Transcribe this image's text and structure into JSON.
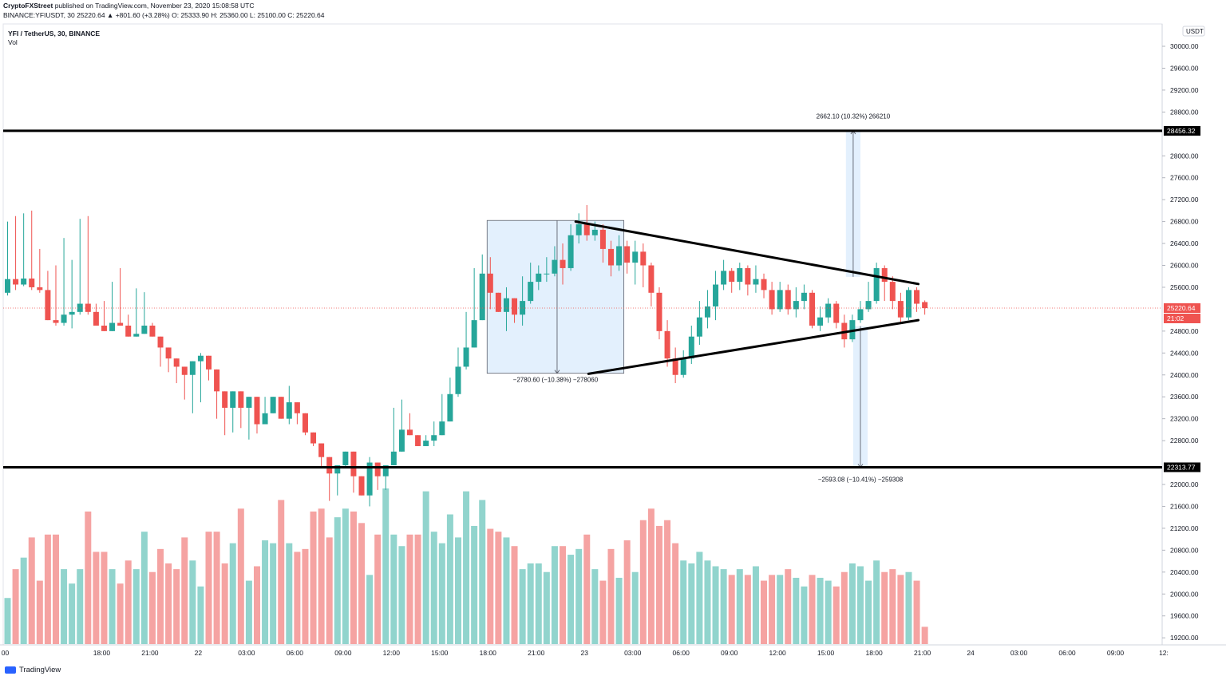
{
  "header": {
    "publish_line_author": "CryptoFXStreet",
    "publish_line_rest": " published on TradingView.com, November 23, 2020 15:08:58 UTC",
    "ohlc_line": "BINANCE:YFIUSDT, 30  25220.64  ▲ +801.60 (+3.28%)  O: 25333.90  H: 25360.00  L: 25100.00  C: 25220.64"
  },
  "symbol_title": "YFI / TetherUS, 30, BINANCE",
  "vol_label": "Vol",
  "footer": {
    "brand": "TradingView"
  },
  "colors": {
    "up": "#26a69a",
    "down": "#ef5350",
    "up_vol": "#91d4cd",
    "down_vol": "#f5a3a2",
    "zone": "#e3f0fd"
  },
  "chart_data": {
    "type": "candlestick",
    "ylim": [
      19000,
      30300
    ],
    "currency_label": "USDT",
    "y_ticks": [
      "30000.00",
      "29600.00",
      "29200.00",
      "28800.00",
      "28000.00",
      "27600.00",
      "27200.00",
      "26800.00",
      "26400.00",
      "26000.00",
      "25600.00",
      "24800.00",
      "24400.00",
      "24000.00",
      "23600.00",
      "23200.00",
      "22800.00",
      "22000.00",
      "21600.00",
      "21200.00",
      "20800.00",
      "20400.00",
      "20000.00",
      "19600.00",
      "19200.00"
    ],
    "x_ticks": [
      {
        "bar": -0.3,
        "label": "00"
      },
      {
        "bar": 11.7,
        "label": "18:00"
      },
      {
        "bar": 17.7,
        "label": "21:00"
      },
      {
        "bar": 23.7,
        "label": "22"
      },
      {
        "bar": 29.7,
        "label": "03:00"
      },
      {
        "bar": 35.7,
        "label": "06:00"
      },
      {
        "bar": 41.7,
        "label": "09:00"
      },
      {
        "bar": 47.7,
        "label": "12:00"
      },
      {
        "bar": 53.7,
        "label": "15:00"
      },
      {
        "bar": 59.7,
        "label": "18:00"
      },
      {
        "bar": 65.7,
        "label": "21:00"
      },
      {
        "bar": 71.7,
        "label": "23"
      },
      {
        "bar": 77.7,
        "label": "03:00"
      },
      {
        "bar": 83.7,
        "label": "06:00"
      },
      {
        "bar": 89.7,
        "label": "09:00"
      },
      {
        "bar": 95.7,
        "label": "12:00"
      },
      {
        "bar": 101.7,
        "label": "15:00"
      },
      {
        "bar": 107.7,
        "label": "18:00"
      },
      {
        "bar": 113.7,
        "label": "21:00"
      },
      {
        "bar": 119.7,
        "label": "24"
      },
      {
        "bar": 125.7,
        "label": "03:00"
      },
      {
        "bar": 131.7,
        "label": "06:00"
      },
      {
        "bar": 137.7,
        "label": "09:00"
      },
      {
        "bar": 143.7,
        "label": "12:"
      }
    ],
    "candles": [
      [
        25500,
        25750,
        26800,
        25450,
        800
      ],
      [
        25750,
        25650,
        26900,
        25550,
        1300
      ],
      [
        25650,
        25760,
        26950,
        25620,
        1500
      ],
      [
        25760,
        25600,
        27000,
        25550,
        1850
      ],
      [
        25600,
        25550,
        26300,
        25500,
        1100
      ],
      [
        25550,
        25000,
        25900,
        25480,
        1900
      ],
      [
        25000,
        24950,
        26000,
        24900,
        1900
      ],
      [
        24950,
        25100,
        26500,
        24900,
        1300
      ],
      [
        25100,
        25150,
        26100,
        24850,
        1050
      ],
      [
        25150,
        25300,
        26850,
        25100,
        1300
      ],
      [
        25300,
        25150,
        26900,
        25100,
        2300
      ],
      [
        25150,
        24900,
        25300,
        25350,
        1600
      ],
      [
        24900,
        24800,
        25350,
        24950,
        1600
      ],
      [
        24800,
        24950,
        25700,
        24900,
        1300
      ],
      [
        24950,
        24900,
        25950,
        24950,
        1050
      ],
      [
        24900,
        24700,
        25100,
        25300,
        1450
      ],
      [
        24700,
        24750,
        25580,
        24850,
        1300
      ],
      [
        24750,
        24900,
        25510,
        24900,
        1950
      ],
      [
        24900,
        24700,
        24950,
        25300,
        1250
      ],
      [
        24700,
        24500,
        24150,
        24150,
        1650
      ],
      [
        24500,
        24300,
        24050,
        24050,
        1400
      ],
      [
        24300,
        24150,
        23850,
        23850,
        1300
      ],
      [
        24150,
        24000,
        23550,
        23550,
        1850
      ],
      [
        24000,
        24250,
        24100,
        23300,
        1450
      ],
      [
        24250,
        24350,
        24400,
        23500,
        1000
      ],
      [
        24350,
        24100,
        23960,
        23900,
        1950
      ],
      [
        24100,
        23700,
        23200,
        23200,
        1950
      ],
      [
        23700,
        23400,
        22900,
        22900,
        1400
      ],
      [
        23400,
        23700,
        23650,
        22950,
        1750
      ],
      [
        23700,
        23400,
        23030,
        23030,
        2350
      ],
      [
        23400,
        23600,
        23400,
        22820,
        1100
      ],
      [
        23600,
        23100,
        23000,
        22930,
        1350
      ],
      [
        23100,
        23300,
        23600,
        23300,
        1800
      ],
      [
        23300,
        23600,
        23600,
        23400,
        1750
      ],
      [
        23600,
        23200,
        23400,
        23200,
        2500
      ],
      [
        23200,
        23500,
        23800,
        23100,
        1750
      ],
      [
        23500,
        23300,
        23350,
        23100,
        1600
      ],
      [
        23300,
        22950,
        22900,
        22900,
        1650
      ],
      [
        22950,
        22750,
        22700,
        22700,
        2300
      ],
      [
        22750,
        22500,
        22320,
        22320,
        2350
      ],
      [
        22500,
        22200,
        21700,
        21700,
        1850
      ],
      [
        22200,
        22350,
        22110,
        21800,
        2200
      ],
      [
        22350,
        22600,
        22100,
        22300,
        2350
      ],
      [
        22600,
        22150,
        21850,
        21850,
        2300
      ],
      [
        22150,
        21800,
        21950,
        21950,
        2100
      ],
      [
        21800,
        22400,
        22500,
        21600,
        1200
      ],
      [
        22400,
        22150,
        22150,
        21900,
        1900
      ],
      [
        22150,
        22350,
        22200,
        21900,
        2700
      ],
      [
        22350,
        22600,
        23400,
        22600,
        1900
      ],
      [
        22600,
        23000,
        23550,
        23000,
        1700
      ],
      [
        23000,
        22900,
        23300,
        22900,
        1900
      ],
      [
        22900,
        22700,
        22780,
        22780,
        1900
      ],
      [
        22700,
        22800,
        22900,
        22700,
        2650
      ],
      [
        22800,
        22900,
        23150,
        22700,
        1950
      ],
      [
        22900,
        23150,
        23650,
        23100,
        1750
      ],
      [
        23150,
        23650,
        23950,
        23250,
        2250
      ],
      [
        23650,
        24150,
        24500,
        23600,
        1850
      ],
      [
        24150,
        24500,
        25150,
        24100,
        2650
      ],
      [
        24500,
        25000,
        25950,
        24900,
        2050
      ],
      [
        25000,
        25850,
        26200,
        25800,
        2500
      ],
      [
        25850,
        25500,
        26150,
        25200,
        2000
      ],
      [
        25500,
        25150,
        25500,
        25150,
        1950
      ],
      [
        25150,
        25400,
        25600,
        24800,
        1850
      ],
      [
        25400,
        25100,
        25280,
        24950,
        1700
      ],
      [
        25100,
        25350,
        25800,
        24900,
        1300
      ],
      [
        25350,
        25700,
        26050,
        25300,
        1400
      ],
      [
        25700,
        25850,
        26000,
        25550,
        1400
      ],
      [
        25850,
        25850,
        26150,
        25700,
        1250
      ],
      [
        25850,
        26100,
        26350,
        25800,
        1700
      ],
      [
        26100,
        25950,
        26400,
        25650,
        1700
      ],
      [
        25950,
        26550,
        26750,
        25900,
        1550
      ],
      [
        26550,
        26750,
        26950,
        26400,
        1650
      ],
      [
        26750,
        26550,
        27100,
        26450,
        1900
      ],
      [
        26550,
        26650,
        26800,
        26450,
        1300
      ],
      [
        26650,
        26300,
        26750,
        26050,
        1100
      ],
      [
        26300,
        26000,
        26450,
        25800,
        1650
      ],
      [
        26000,
        26350,
        26550,
        25900,
        1150
      ],
      [
        26350,
        26050,
        26450,
        25850,
        1800
      ],
      [
        26050,
        26250,
        26450,
        25650,
        1250
      ],
      [
        26250,
        26000,
        26400,
        25600,
        2150
      ],
      [
        26000,
        25500,
        26050,
        25250,
        2350
      ],
      [
        25500,
        24800,
        25600,
        24650,
        2050
      ],
      [
        24800,
        24300,
        25000,
        24150,
        2150
      ],
      [
        24300,
        24000,
        24500,
        23850,
        1750
      ],
      [
        24000,
        24300,
        24450,
        23950,
        1450
      ],
      [
        24300,
        24700,
        24900,
        24200,
        1400
      ],
      [
        24700,
        25050,
        25350,
        24550,
        1600
      ],
      [
        25050,
        25250,
        25550,
        24850,
        1450
      ],
      [
        25250,
        25650,
        25900,
        25000,
        1350
      ],
      [
        25650,
        25900,
        26100,
        25550,
        1300
      ],
      [
        25900,
        25700,
        25950,
        25500,
        1200
      ],
      [
        25700,
        25950,
        26050,
        25550,
        1300
      ],
      [
        25950,
        25650,
        26000,
        25450,
        1200
      ],
      [
        25650,
        25750,
        26000,
        25500,
        1350
      ],
      [
        25750,
        25550,
        25850,
        25400,
        1100
      ],
      [
        25550,
        25200,
        25700,
        25100,
        1200
      ],
      [
        25200,
        25550,
        25700,
        25150,
        1200
      ],
      [
        25550,
        25200,
        25650,
        25100,
        1300
      ],
      [
        25200,
        25350,
        25600,
        25050,
        1150
      ],
      [
        25350,
        25500,
        25650,
        25200,
        1000
      ],
      [
        25500,
        24900,
        25550,
        24850,
        1200
      ],
      [
        24900,
        25050,
        25250,
        24800,
        1150
      ],
      [
        25050,
        25300,
        25400,
        24950,
        1100
      ],
      [
        25300,
        24950,
        25350,
        24850,
        1000
      ],
      [
        24950,
        24650,
        25100,
        24500,
        1250
      ],
      [
        24650,
        25000,
        25100,
        24600,
        1400
      ],
      [
        25000,
        25200,
        25350,
        24950,
        1350
      ],
      [
        25200,
        25350,
        25700,
        25150,
        1100
      ],
      [
        25350,
        25950,
        26050,
        25300,
        1450
      ],
      [
        25950,
        25700,
        26000,
        25350,
        1250
      ],
      [
        25700,
        25350,
        25800,
        25200,
        1300
      ],
      [
        25350,
        25050,
        25500,
        24950,
        1200
      ],
      [
        25050,
        25550,
        25600,
        25000,
        1250
      ],
      [
        25550,
        25300,
        25600,
        25150,
        1100
      ],
      [
        25330,
        25220,
        25360,
        25100,
        300
      ]
    ],
    "levels": [
      {
        "value": 28456.32,
        "label": "28456.32"
      },
      {
        "value": 22313.77,
        "label": "22313.77"
      }
    ],
    "last_price": {
      "value": 25220.64,
      "label": "25220.64",
      "countdown": "21:02"
    },
    "triangle": {
      "upper": [
        [
          70.6,
          26800
        ],
        [
          113.2,
          25660
        ]
      ],
      "lower": [
        [
          72.2,
          24020
        ],
        [
          113.2,
          25000
        ]
      ]
    },
    "measure_boxes": [
      {
        "bar0": 59.6,
        "bar1": 76.6,
        "p0": 24030,
        "p1": 26820,
        "arrow_bar": 68.3,
        "direction": "down",
        "label": "−2780.60 (−10.38%) −278060",
        "label_price": 23870
      },
      {
        "bar0": 104.2,
        "bar1": 106.0,
        "p0": 25790,
        "p1": 28456.32,
        "arrow_bar": 105.1,
        "direction": "up",
        "label": "2662.10 (10.32%) 266210",
        "label_price": 28680
      },
      {
        "bar0": 105.1,
        "bar1": 106.9,
        "p0": 22313.77,
        "p1": 24890,
        "arrow_bar": 106.0,
        "direction": "down",
        "label": "−2593.08 (−10.41%) −259308",
        "label_price": 22050
      }
    ]
  }
}
